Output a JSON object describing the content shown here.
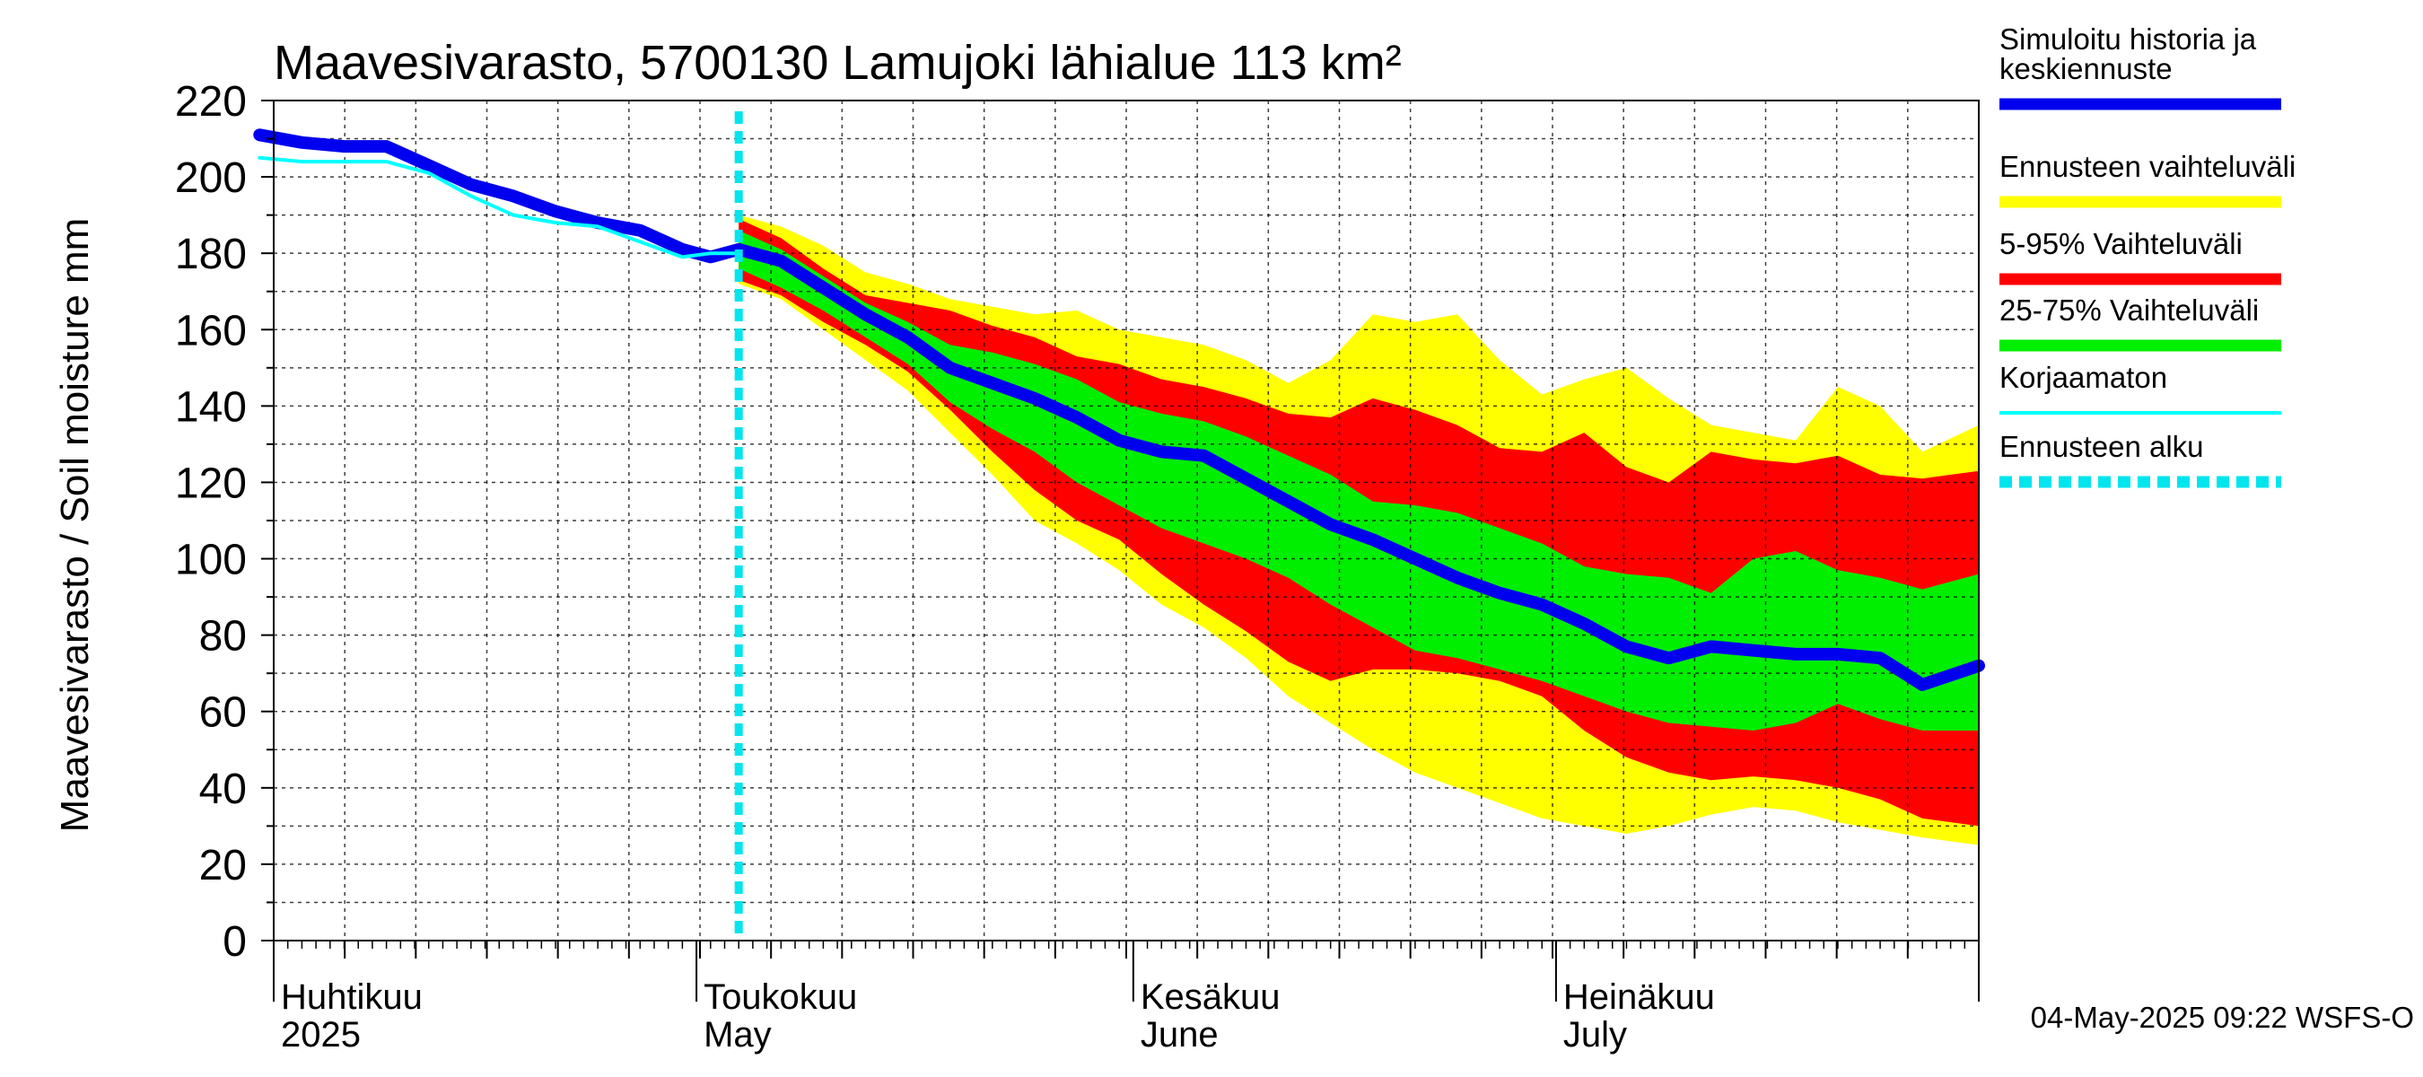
{
  "chart_data": {
    "type": "area",
    "title": "Maavesivarasto, 5700130 Lamujoki lähialue 113 km²",
    "ylabel": "Maavesivarasto / Soil moisture   mm",
    "ylim": [
      0,
      220
    ],
    "yticks": [
      "0",
      "20",
      "40",
      "60",
      "80",
      "100",
      "120",
      "140",
      "160",
      "180",
      "200",
      "220"
    ],
    "xlim": [
      "2025-04-01",
      "2025-07-31"
    ],
    "grid": true,
    "month_labels": [
      {
        "fi": "Huhtikuu",
        "en": "2025",
        "date": "2025-04-01"
      },
      {
        "fi": "Toukokuu",
        "en": "May",
        "date": "2025-05-01"
      },
      {
        "fi": "Kesäkuu",
        "en": "June",
        "date": "2025-06-01"
      },
      {
        "fi": "Heinäkuu",
        "en": "July",
        "date": "2025-07-01"
      }
    ],
    "forecast_start": "2025-05-04",
    "legend": [
      {
        "label": "Simuloitu historia ja keskiennuste",
        "color": "#0000ee"
      },
      {
        "label": "Ennusteen vaihteluväli",
        "color": "#ffff00"
      },
      {
        "label": "5-95% Vaihteluväli",
        "color": "#ff0000"
      },
      {
        "label": "25-75% Vaihteluväli",
        "color": "#00ee00"
      },
      {
        "label": "Korjaamaton",
        "color": "#00ffff"
      },
      {
        "label": "Ennusteen alku",
        "color": "#00e5ee"
      }
    ],
    "series": [
      {
        "name": "Simuloitu historia ja keskiennuste",
        "x": [
          "2025-03-31",
          "2025-04-03",
          "2025-04-06",
          "2025-04-09",
          "2025-04-12",
          "2025-04-15",
          "2025-04-18",
          "2025-04-21",
          "2025-04-24",
          "2025-04-27",
          "2025-04-30",
          "2025-05-02",
          "2025-05-04",
          "2025-05-07",
          "2025-05-10",
          "2025-05-13",
          "2025-05-16",
          "2025-05-19",
          "2025-05-22",
          "2025-05-25",
          "2025-05-28",
          "2025-05-31",
          "2025-06-03",
          "2025-06-06",
          "2025-06-09",
          "2025-06-12",
          "2025-06-15",
          "2025-06-18",
          "2025-06-21",
          "2025-06-24",
          "2025-06-27",
          "2025-06-30",
          "2025-07-03",
          "2025-07-06",
          "2025-07-09",
          "2025-07-12",
          "2025-07-15",
          "2025-07-18",
          "2025-07-21",
          "2025-07-24",
          "2025-07-27",
          "2025-07-31"
        ],
        "y": [
          211,
          209,
          208,
          208,
          203,
          198,
          195,
          191,
          188,
          186,
          181,
          179,
          181,
          178,
          171,
          164,
          158,
          150,
          146,
          142,
          137,
          131,
          128,
          127,
          121,
          115,
          109,
          105,
          100,
          95,
          91,
          88,
          83,
          77,
          74,
          77,
          76,
          75,
          75,
          74,
          67,
          72
        ]
      },
      {
        "name": "Korjaamaton",
        "x": [
          "2025-03-31",
          "2025-04-03",
          "2025-04-06",
          "2025-04-09",
          "2025-04-12",
          "2025-04-15",
          "2025-04-18",
          "2025-04-21",
          "2025-04-24",
          "2025-04-27",
          "2025-04-30",
          "2025-05-02",
          "2025-05-04"
        ],
        "y": [
          205,
          204,
          204,
          204,
          201,
          195,
          190,
          188,
          187,
          183,
          179,
          180,
          180
        ]
      }
    ],
    "bands": [
      {
        "name": "Ennusteen vaihteluväli",
        "x": [
          "2025-05-04",
          "2025-05-07",
          "2025-05-10",
          "2025-05-13",
          "2025-05-16",
          "2025-05-19",
          "2025-05-22",
          "2025-05-25",
          "2025-05-28",
          "2025-05-31",
          "2025-06-03",
          "2025-06-06",
          "2025-06-09",
          "2025-06-12",
          "2025-06-15",
          "2025-06-18",
          "2025-06-21",
          "2025-06-24",
          "2025-06-27",
          "2025-06-30",
          "2025-07-03",
          "2025-07-06",
          "2025-07-09",
          "2025-07-12",
          "2025-07-15",
          "2025-07-18",
          "2025-07-21",
          "2025-07-24",
          "2025-07-27",
          "2025-07-31"
        ],
        "upper": [
          190,
          187,
          182,
          175,
          172,
          168,
          166,
          164,
          165,
          160,
          158,
          156,
          152,
          146,
          152,
          164,
          162,
          164,
          152,
          143,
          147,
          150,
          142,
          135,
          133,
          131,
          145,
          140,
          128,
          135
        ],
        "lower": [
          172,
          168,
          160,
          152,
          144,
          133,
          122,
          110,
          104,
          97,
          88,
          82,
          74,
          64,
          57,
          50,
          44,
          40,
          36,
          32,
          30,
          28,
          30,
          33,
          35,
          34,
          31,
          29,
          27,
          25
        ]
      },
      {
        "name": "5-95% Vaihteluväli",
        "x": [
          "2025-05-04",
          "2025-05-07",
          "2025-05-10",
          "2025-05-13",
          "2025-05-16",
          "2025-05-19",
          "2025-05-22",
          "2025-05-25",
          "2025-05-28",
          "2025-05-31",
          "2025-06-03",
          "2025-06-06",
          "2025-06-09",
          "2025-06-12",
          "2025-06-15",
          "2025-06-18",
          "2025-06-21",
          "2025-06-24",
          "2025-06-27",
          "2025-06-30",
          "2025-07-03",
          "2025-07-06",
          "2025-07-09",
          "2025-07-12",
          "2025-07-15",
          "2025-07-18",
          "2025-07-21",
          "2025-07-24",
          "2025-07-27",
          "2025-07-31"
        ],
        "upper": [
          189,
          184,
          176,
          169,
          167,
          165,
          161,
          158,
          153,
          151,
          147,
          145,
          142,
          138,
          137,
          142,
          139,
          135,
          129,
          128,
          133,
          124,
          120,
          128,
          126,
          125,
          127,
          122,
          121,
          123
        ],
        "lower": [
          173,
          169,
          162,
          156,
          149,
          139,
          128,
          118,
          110,
          105,
          96,
          88,
          81,
          73,
          68,
          71,
          71,
          70,
          68,
          64,
          55,
          48,
          44,
          42,
          43,
          42,
          40,
          37,
          32,
          30
        ]
      },
      {
        "name": "25-75% Vaihteluväli",
        "x": [
          "2025-05-04",
          "2025-05-07",
          "2025-05-10",
          "2025-05-13",
          "2025-05-16",
          "2025-05-19",
          "2025-05-22",
          "2025-05-25",
          "2025-05-28",
          "2025-05-31",
          "2025-06-03",
          "2025-06-06",
          "2025-06-09",
          "2025-06-12",
          "2025-06-15",
          "2025-06-18",
          "2025-06-21",
          "2025-06-24",
          "2025-06-27",
          "2025-06-30",
          "2025-07-03",
          "2025-07-06",
          "2025-07-09",
          "2025-07-12",
          "2025-07-15",
          "2025-07-18",
          "2025-07-21",
          "2025-07-24",
          "2025-07-27",
          "2025-07-31"
        ],
        "upper": [
          186,
          181,
          174,
          167,
          162,
          156,
          154,
          151,
          147,
          141,
          138,
          136,
          132,
          127,
          122,
          115,
          114,
          112,
          108,
          104,
          98,
          96,
          95,
          91,
          100,
          102,
          97,
          95,
          92,
          96
        ],
        "lower": [
          176,
          171,
          165,
          158,
          151,
          141,
          134,
          128,
          120,
          114,
          108,
          104,
          100,
          95,
          88,
          82,
          76,
          74,
          71,
          68,
          64,
          60,
          57,
          56,
          55,
          57,
          62,
          58,
          55,
          55
        ]
      }
    ]
  },
  "footer": {
    "timestamp": "04-May-2025 09:22 WSFS-O"
  }
}
